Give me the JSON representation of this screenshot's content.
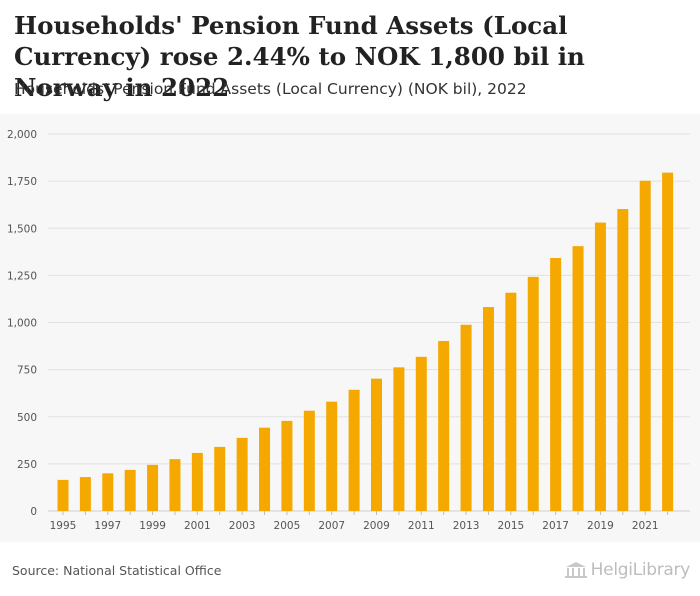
{
  "header": {
    "title": "Households' Pension Fund Assets (Local Currency) rose 2.44% to NOK 1,800 bil in Norway in 2022",
    "subtitle": "Households' Pension Fund Assets (Local Currency) (NOK bil), 2022"
  },
  "footer": {
    "source": "Source: National Statistical Office",
    "logo_text": "HelgiLibrary"
  },
  "colors": {
    "bar": "#f5a800",
    "grid": "#e2e2e2",
    "axis_text": "#555555"
  },
  "chart_data": {
    "type": "bar",
    "title": "Households' Pension Fund Assets (Local Currency) (NOK bil)",
    "xlabel": "",
    "ylabel": "",
    "ylim": [
      0,
      2000
    ],
    "yticks": [
      0,
      250,
      500,
      750,
      1000,
      1250,
      1500,
      1750,
      2000
    ],
    "ytick_labels": [
      "0",
      "250",
      "500",
      "750",
      "1,000",
      "1,250",
      "1,500",
      "1,750",
      "2,000"
    ],
    "categories": [
      "1995",
      "1996",
      "1997",
      "1998",
      "1999",
      "2000",
      "2001",
      "2002",
      "2003",
      "2004",
      "2005",
      "2006",
      "2007",
      "2008",
      "2009",
      "2010",
      "2011",
      "2012",
      "2013",
      "2014",
      "2015",
      "2016",
      "2017",
      "2018",
      "2019",
      "2020",
      "2021",
      "2022"
    ],
    "xtick_labels": [
      "1995",
      "1997",
      "1999",
      "2001",
      "2003",
      "2005",
      "2007",
      "2009",
      "2011",
      "2013",
      "2015",
      "2017",
      "2019",
      "2021"
    ],
    "values": [
      165,
      180,
      200,
      218,
      245,
      275,
      308,
      340,
      388,
      442,
      478,
      532,
      580,
      643,
      702,
      762,
      818,
      902,
      988,
      1082,
      1158,
      1242,
      1342,
      1405,
      1530,
      1602,
      1752,
      1795
    ]
  }
}
